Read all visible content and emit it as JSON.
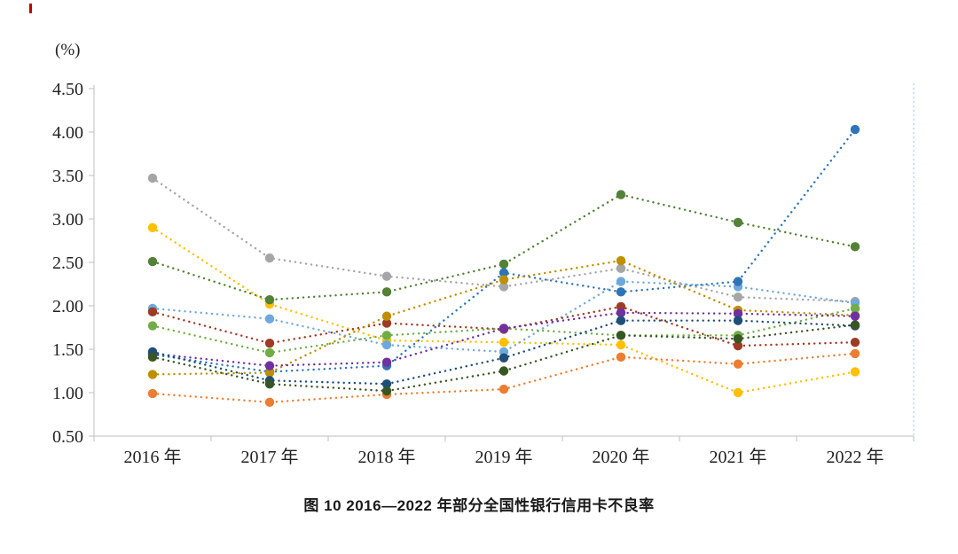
{
  "figure": {
    "unit_label": "(%)",
    "caption": "图 10  2016—2022 年部分全国性银行信用卡不良率"
  },
  "chart_data": {
    "type": "line",
    "title": "图 10 2016—2022 年部分全国性银行信用卡不良率",
    "ylabel": "(%)",
    "ylim": [
      0.5,
      4.5
    ],
    "ytick_step": 0.5,
    "grid": false,
    "legend_position": "none",
    "line_style": "dotted-with-markers",
    "categories": [
      "2016 年",
      "2017 年",
      "2018 年",
      "2019 年",
      "2020 年",
      "2021 年",
      "2022 年"
    ],
    "series": [
      {
        "name": "series-gray",
        "color": "#a6a6a6",
        "values": [
          3.47,
          2.55,
          2.34,
          2.22,
          2.43,
          2.1,
          2.05
        ]
      },
      {
        "name": "series-yellow",
        "color": "#ffc000",
        "values": [
          2.9,
          2.02,
          1.6,
          1.58,
          1.55,
          1.0,
          1.24
        ]
      },
      {
        "name": "series-dark-green",
        "color": "#538135",
        "values": [
          2.51,
          2.07,
          2.16,
          2.48,
          3.28,
          2.96,
          2.68
        ]
      },
      {
        "name": "series-light-blue",
        "color": "#6fa8dc",
        "values": [
          1.97,
          1.85,
          1.55,
          1.47,
          2.28,
          2.22,
          2.03
        ]
      },
      {
        "name": "series-blue",
        "color": "#2e75b6",
        "values": [
          1.44,
          1.24,
          1.31,
          2.38,
          2.16,
          2.28,
          4.03
        ]
      },
      {
        "name": "series-dark-red",
        "color": "#9e3b25",
        "values": [
          1.93,
          1.57,
          1.8,
          1.73,
          1.99,
          1.54,
          1.58
        ]
      },
      {
        "name": "series-olive",
        "color": "#bf8f00",
        "values": [
          1.21,
          1.23,
          1.88,
          2.3,
          2.52,
          1.95,
          1.89
        ]
      },
      {
        "name": "series-green",
        "color": "#70ad47",
        "values": [
          1.77,
          1.46,
          1.66,
          1.74,
          1.66,
          1.66,
          1.97
        ]
      },
      {
        "name": "series-purple",
        "color": "#7030a0",
        "values": [
          1.45,
          1.31,
          1.35,
          1.74,
          1.92,
          1.91,
          1.88
        ]
      },
      {
        "name": "series-orange",
        "color": "#ed7d31",
        "values": [
          0.99,
          0.89,
          0.98,
          1.04,
          1.41,
          1.33,
          1.45
        ]
      },
      {
        "name": "series-navy",
        "color": "#1f4e79",
        "values": [
          1.47,
          1.14,
          1.1,
          1.4,
          1.83,
          1.83,
          1.77
        ]
      },
      {
        "name": "series-dark-teal",
        "color": "#375623",
        "values": [
          1.41,
          1.1,
          1.02,
          1.25,
          1.66,
          1.62,
          1.78
        ]
      }
    ]
  }
}
